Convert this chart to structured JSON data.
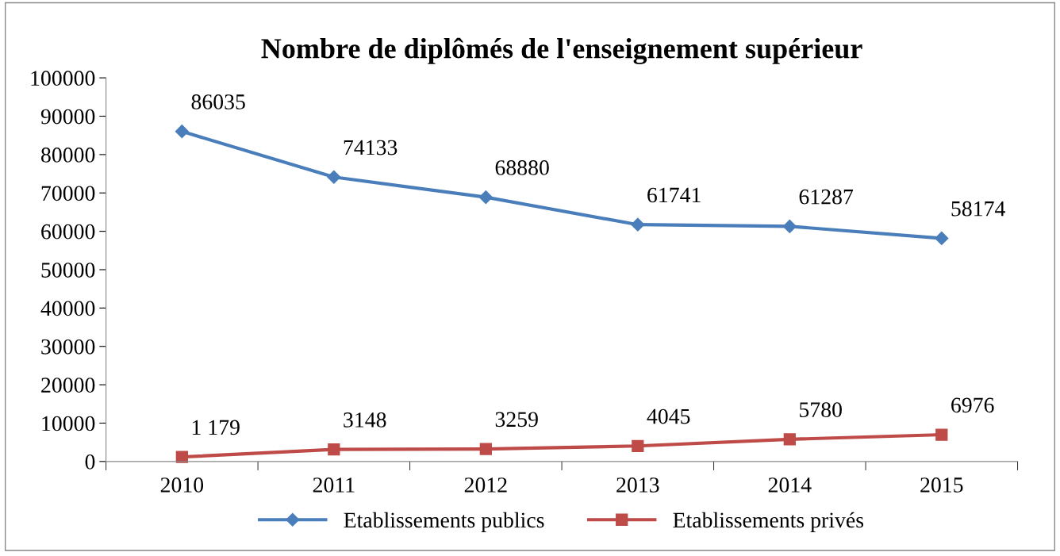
{
  "chart_data": {
    "type": "line",
    "title": "Nombre de diplômés de l'enseignement supérieur",
    "categories": [
      "2010",
      "2011",
      "2012",
      "2013",
      "2014",
      "2015"
    ],
    "series": [
      {
        "name": "Etablissements publics",
        "color": "#4a7ebb",
        "marker": "diamond",
        "values": [
          86035,
          74133,
          68880,
          61741,
          61287,
          58174
        ],
        "value_labels": [
          "86035",
          "74133",
          "68880",
          "61741",
          "61287",
          "58174"
        ]
      },
      {
        "name": "Etablissements privés",
        "color": "#be4b48",
        "marker": "square",
        "values": [
          1179,
          3148,
          3259,
          4045,
          5780,
          6976
        ],
        "value_labels": [
          "1 179",
          "3148",
          "3259",
          "4045",
          "5780",
          "6976"
        ]
      }
    ],
    "ylim": [
      0,
      100000
    ],
    "yticks": [
      0,
      10000,
      20000,
      30000,
      40000,
      50000,
      60000,
      70000,
      80000,
      90000,
      100000
    ],
    "grid": false,
    "legend": "bottom",
    "line_style": "solid"
  }
}
